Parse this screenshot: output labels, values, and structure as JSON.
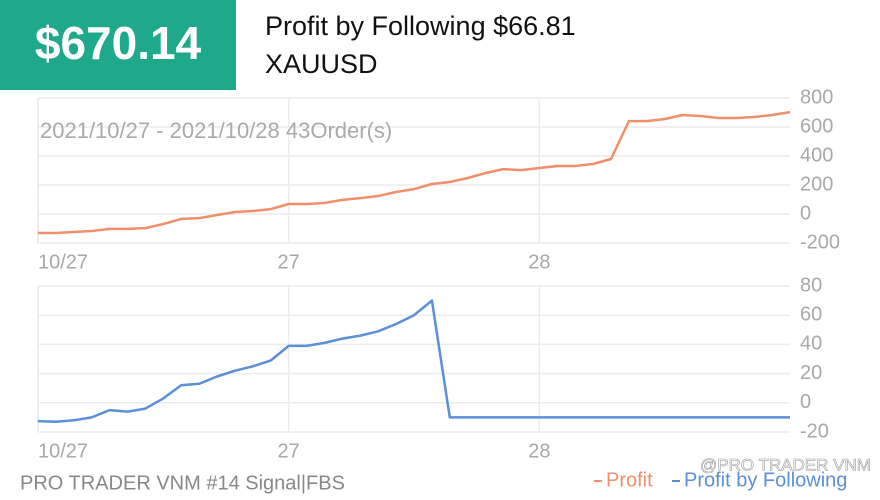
{
  "header": {
    "amount": "$670.14",
    "title": "Profit by Following $66.81",
    "symbol": "XAUUSD"
  },
  "chart_data": [
    {
      "type": "line",
      "annotation": "2021/10/27 - 2021/10/28 43Order(s)",
      "categories": [
        "10/27",
        null,
        null,
        null,
        null,
        null,
        null,
        null,
        null,
        null,
        null,
        null,
        null,
        null,
        "27",
        null,
        null,
        null,
        null,
        null,
        null,
        null,
        null,
        null,
        null,
        null,
        null,
        null,
        "28",
        null,
        null,
        null,
        null,
        null,
        null,
        null,
        null,
        null,
        null,
        null,
        null,
        null,
        null
      ],
      "series": [
        {
          "name": "Profit",
          "color": "#f0906a",
          "values": [
            -131,
            -131,
            -124,
            -117,
            -103,
            -103,
            -97,
            -69,
            -34,
            -28,
            -7,
            14,
            21,
            34,
            69,
            69,
            76,
            97,
            110,
            124,
            152,
            172,
            207,
            221,
            248,
            283,
            310,
            303,
            317,
            331,
            331,
            345,
            379,
            641,
            641,
            655,
            683,
            676,
            662,
            662,
            669,
            683,
            703
          ]
        }
      ],
      "ylim": [
        -200,
        800
      ],
      "yticks": [
        -200,
        0,
        200,
        400,
        600,
        800
      ],
      "grid": true
    },
    {
      "type": "line",
      "categories": [
        "10/27",
        null,
        null,
        null,
        null,
        null,
        null,
        null,
        null,
        null,
        null,
        null,
        null,
        null,
        "27",
        null,
        null,
        null,
        null,
        null,
        null,
        null,
        null,
        null,
        null,
        null,
        null,
        null,
        "28",
        null,
        null,
        null,
        null,
        null,
        null,
        null,
        null,
        null,
        null,
        null,
        null,
        null,
        null
      ],
      "series": [
        {
          "name": "Profit by Following",
          "color": "#5b8fd9",
          "values": [
            -12.5,
            -13,
            -12,
            -10,
            -5,
            -6,
            -4,
            3,
            12,
            13,
            18,
            22,
            25,
            29,
            39,
            39,
            41,
            44,
            46,
            49,
            54,
            60,
            70,
            -10,
            -10,
            -10,
            -10,
            -10,
            -10,
            -10,
            -10,
            -10,
            -10,
            -10,
            -10,
            -10,
            -10,
            -10,
            -10,
            -10,
            -10,
            -10,
            -10
          ]
        }
      ],
      "ylim": [
        -20,
        80
      ],
      "yticks": [
        -20,
        0,
        20,
        40,
        60,
        80
      ],
      "grid": true
    }
  ],
  "footer": "PRO TRADER VNM #14 Signal|FBS",
  "watermark": "@PRO TRADER VNM"
}
